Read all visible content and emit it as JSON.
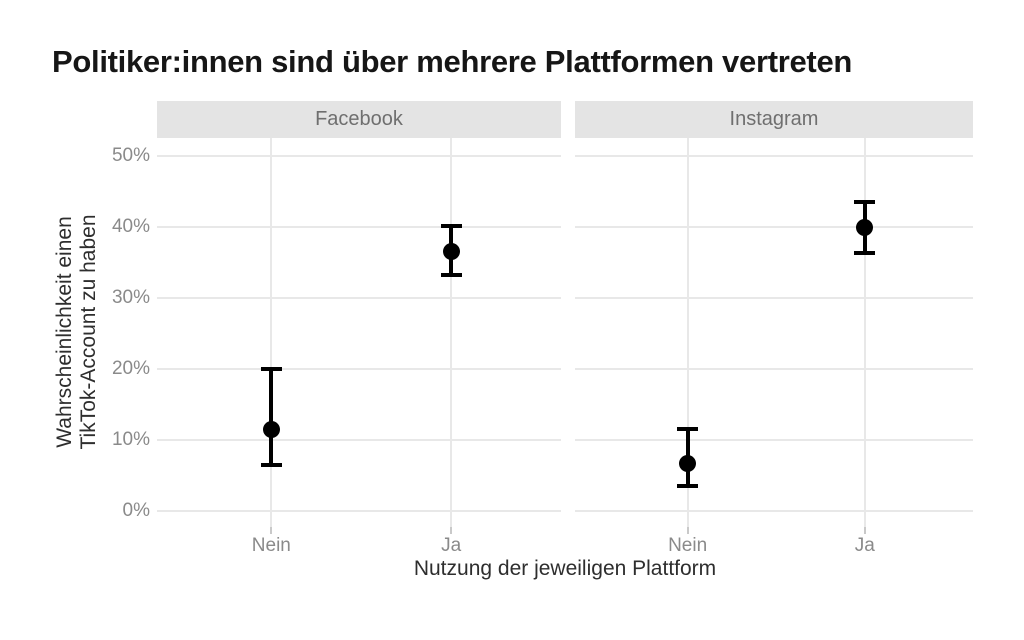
{
  "title": "Politiker:innen sind über mehrere Plattformen vertreten",
  "chart_data": {
    "type": "pointrange",
    "title": "Politiker:innen sind über mehrere Plattformen vertreten",
    "xlabel": "Nutzung der jeweiligen Plattform",
    "ylabel_lines": [
      "Wahrscheinlichkeit einen",
      "TikTok-Account zu haben"
    ],
    "facets": [
      {
        "label": "Facebook",
        "categories": [
          "Nein",
          "Ja"
        ],
        "points": [
          {
            "category": "Nein",
            "estimate": 11.5,
            "ci_low": 6.5,
            "ci_high": 20.0
          },
          {
            "category": "Ja",
            "estimate": 36.6,
            "ci_low": 33.3,
            "ci_high": 40.2
          }
        ]
      },
      {
        "label": "Instagram",
        "categories": [
          "Nein",
          "Ja"
        ],
        "points": [
          {
            "category": "Nein",
            "estimate": 6.6,
            "ci_low": 3.5,
            "ci_high": 11.6
          },
          {
            "category": "Ja",
            "estimate": 40.0,
            "ci_low": 36.4,
            "ci_high": 43.6
          }
        ]
      }
    ],
    "y_ticks": [
      0,
      10,
      20,
      30,
      40,
      50
    ],
    "y_tick_suffix": "%",
    "ylim": [
      -2.3,
      52.6
    ],
    "grid": true,
    "legend": "none",
    "colors": {
      "point": "#000000",
      "grid": "#e8e8e8",
      "strip_fill": "#e4e4e4",
      "strip_text": "#6f6f6f",
      "tick_label": "#8a8a8a",
      "tick_mark": "#c9c9c9",
      "axis_title": "#2e2e2e",
      "title": "#161616"
    }
  }
}
